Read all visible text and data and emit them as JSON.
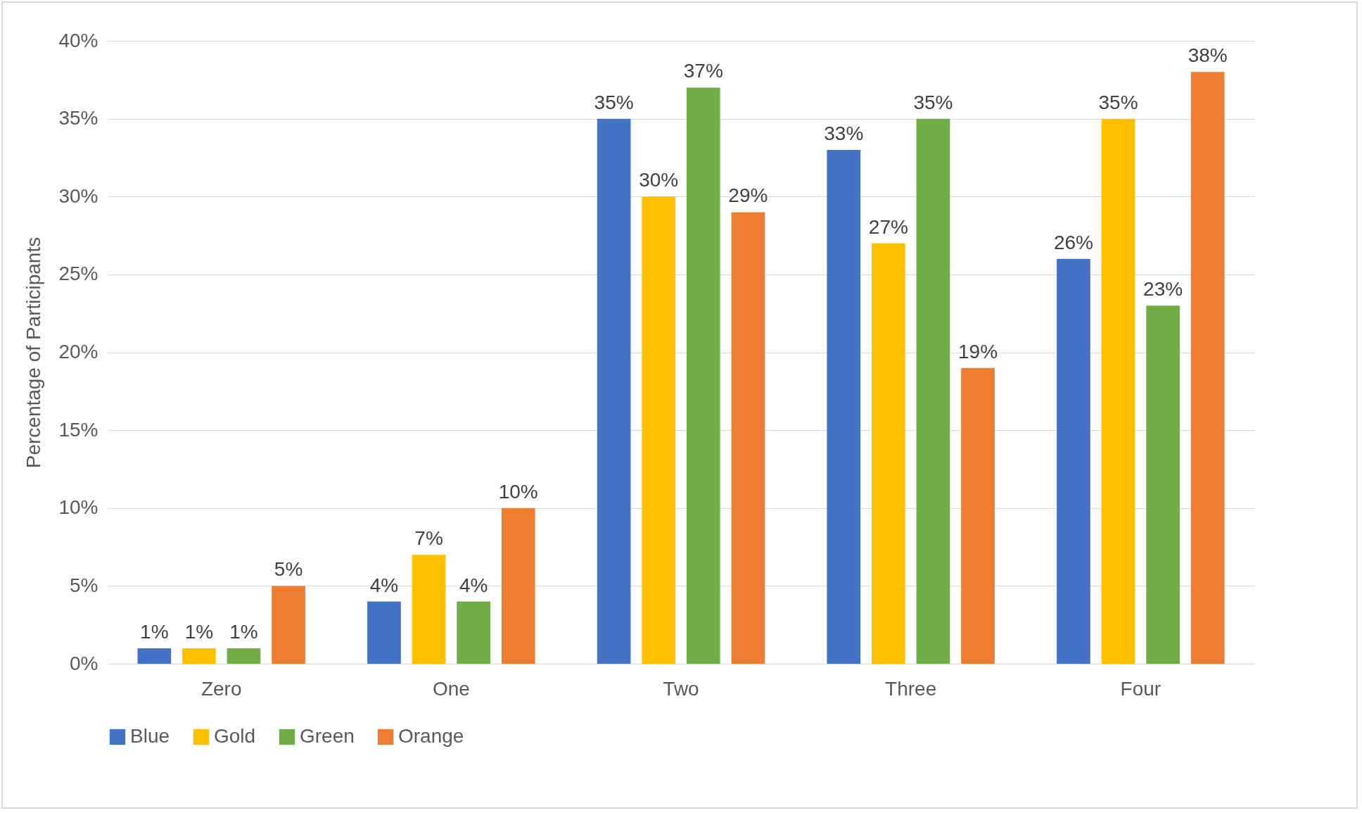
{
  "chart_data": {
    "type": "bar",
    "ylabel": "Percentage of Participants",
    "categories": [
      "Zero",
      "One",
      "Two",
      "Three",
      "Four"
    ],
    "series": [
      {
        "name": "Blue",
        "color": "#4472c4",
        "values": [
          1,
          4,
          35,
          33,
          26
        ],
        "value_labels": [
          "1%",
          "4%",
          "35%",
          "33%",
          "26%"
        ]
      },
      {
        "name": "Gold",
        "color": "#ffc000",
        "values": [
          1,
          7,
          30,
          27,
          35
        ],
        "value_labels": [
          "1%",
          "7%",
          "30%",
          "27%",
          "35%"
        ]
      },
      {
        "name": "Green",
        "color": "#70ad47",
        "values": [
          1,
          4,
          37,
          35,
          23
        ],
        "value_labels": [
          "1%",
          "4%",
          "37%",
          "35%",
          "23%"
        ]
      },
      {
        "name": "Orange",
        "color": "#ed7d31",
        "values": [
          5,
          10,
          29,
          19,
          38
        ],
        "value_labels": [
          "5%",
          "10%",
          "29%",
          "19%",
          "38%"
        ]
      }
    ],
    "ylim": [
      0,
      40
    ],
    "yticks": [
      {
        "value": 0,
        "label": "0%"
      },
      {
        "value": 5,
        "label": "5%"
      },
      {
        "value": 10,
        "label": "10%"
      },
      {
        "value": 15,
        "label": "15%"
      },
      {
        "value": 20,
        "label": "20%"
      },
      {
        "value": 25,
        "label": "25%"
      },
      {
        "value": 30,
        "label": "30%"
      },
      {
        "value": 35,
        "label": "35%"
      },
      {
        "value": 40,
        "label": "40%"
      }
    ],
    "grid": "y",
    "legend": "bottom"
  }
}
